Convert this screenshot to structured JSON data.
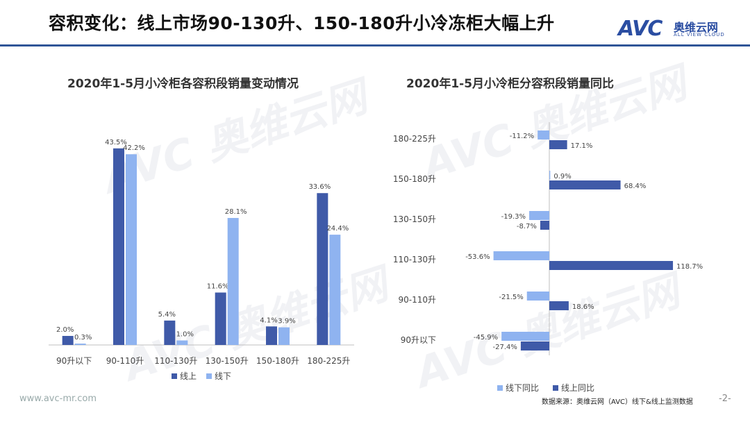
{
  "header": {
    "title": "容积变化：线上市场90-130升、150-180升小冷冻柜大幅上升"
  },
  "logo": {
    "main": "AVC",
    "cn": "奥维云网",
    "en": "ALL VIEW CLOUD"
  },
  "watermark": {
    "text": "AVC 奥维云网"
  },
  "footer": {
    "url": "www.avc-mr.com",
    "source": "数据来源：奥维云网（AVC）线下&线上监测数据",
    "page": "-2-"
  },
  "colors": {
    "online": "#3f5aa8",
    "offline": "#8fb3f0",
    "accent": "#2f5597"
  },
  "chart_data": [
    {
      "type": "bar",
      "title": "2020年1-5月小冷柜各容积段销量变动情况",
      "categories": [
        "90升以下",
        "90-110升",
        "110-130升",
        "130-150升",
        "150-180升",
        "180-225升"
      ],
      "series": [
        {
          "name": "线上",
          "values": [
            2.0,
            43.5,
            5.4,
            11.6,
            4.1,
            33.6
          ],
          "labels": [
            "2.0%",
            "43.5%",
            "5.4%",
            "11.6%",
            "4.1%",
            "33.6%"
          ]
        },
        {
          "name": "线下",
          "values": [
            0.3,
            42.2,
            1.0,
            28.1,
            3.9,
            24.4
          ],
          "labels": [
            "0.3%",
            "42.2%",
            "1.0%",
            "28.1%",
            "3.9%",
            "24.4%"
          ]
        }
      ],
      "ylim": [
        0,
        45
      ],
      "legend": "bottom"
    },
    {
      "type": "bar",
      "orientation": "horizontal",
      "title": "2020年1-5月小冷柜分容积段销量同比",
      "categories": [
        "180-225升",
        "150-180升",
        "130-150升",
        "110-130升",
        "90-110升",
        "90升以下"
      ],
      "series": [
        {
          "name": "线下同比",
          "values": [
            -11.2,
            0.9,
            -19.3,
            -53.6,
            -21.5,
            -45.9
          ],
          "labels": [
            "-11.2%",
            "0.9%",
            "-19.3%",
            "-53.6%",
            "-21.5%",
            "-45.9%"
          ]
        },
        {
          "name": "线上同比",
          "values": [
            17.1,
            68.4,
            -8.7,
            118.7,
            18.6,
            -27.4
          ],
          "labels": [
            "17.1%",
            "68.4%",
            "-8.7%",
            "118.7%",
            "18.6%",
            "-27.4%"
          ]
        }
      ],
      "xlim": [
        -60,
        120
      ],
      "legend": "bottom"
    }
  ]
}
